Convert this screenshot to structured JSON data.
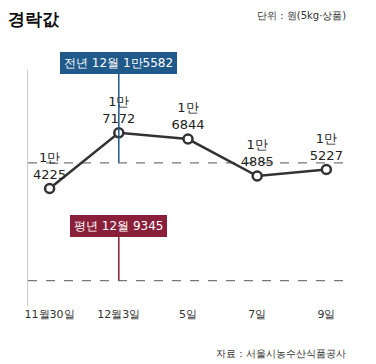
{
  "chart_data": {
    "type": "line",
    "title": "경락값",
    "subtitle": "단위 : 원(5kg·상품)",
    "source": "자료 : 서울시농수산식품공사",
    "categories": [
      "11월30일",
      "12월3일",
      "5일",
      "7일",
      "9일"
    ],
    "values": [
      14225,
      17172,
      16844,
      14885,
      15227
    ],
    "value_labels": [
      "1만\n4225",
      "1만\n7172",
      "1만\n6844",
      "1만\n4885",
      "1만\n5227"
    ],
    "data_labels": true,
    "color": "#333333",
    "marker": "circle",
    "ylim": [
      8000,
      20500
    ],
    "yticks": [],
    "tick_labels": "x",
    "grid": false,
    "reference_lines": [
      {
        "label": "전년 12월 1만5582",
        "value": 15582,
        "color": "#1f5a8a"
      },
      {
        "label": "평년 12월 9345",
        "value": 9345,
        "color": "#8a1f3a"
      }
    ]
  }
}
